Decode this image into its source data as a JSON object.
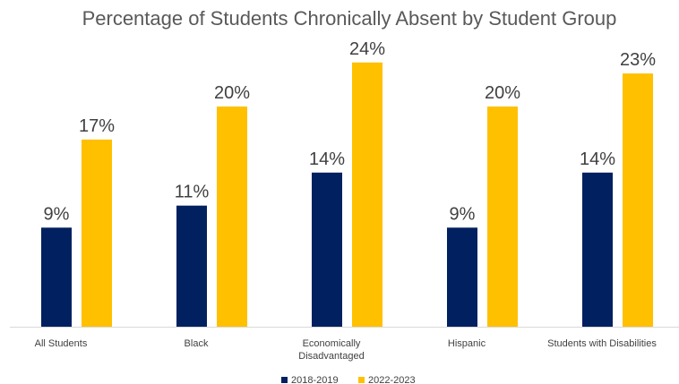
{
  "chart_data": {
    "type": "bar",
    "title": "Percentage of Students Chronically Absent by Student Group",
    "categories": [
      "All Students",
      "Black",
      "Economically Disadvantaged",
      "Hispanic",
      "Students with Disabilities"
    ],
    "category_lines": [
      [
        "All Students"
      ],
      [
        "Black"
      ],
      [
        "Economically",
        "Disadvantaged"
      ],
      [
        "Hispanic"
      ],
      [
        "Students with Disabilities"
      ]
    ],
    "series": [
      {
        "name": "2018-2019",
        "color": "#002060",
        "values": [
          9,
          11,
          14,
          9,
          14
        ],
        "labels": [
          "9%",
          "11%",
          "14%",
          "9%",
          "14%"
        ]
      },
      {
        "name": "2022-2023",
        "color": "#FFC000",
        "values": [
          17,
          20,
          24,
          20,
          23
        ],
        "labels": [
          "17%",
          "20%",
          "24%",
          "20%",
          "23%"
        ]
      }
    ],
    "ylim": [
      0,
      26
    ],
    "grid": false,
    "legend": "bottom"
  }
}
